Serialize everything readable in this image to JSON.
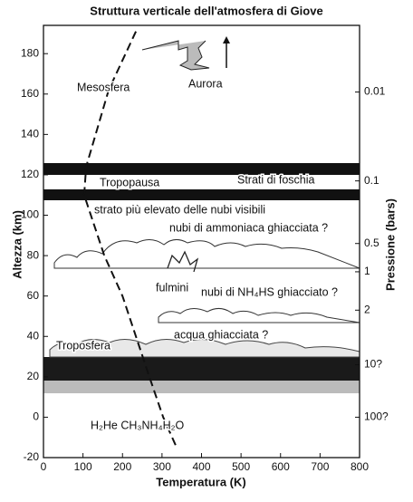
{
  "chart_data": {
    "type": "line",
    "title": "Struttura verticale dell'atmosfera di Giove",
    "x_label": "Temperatura (K)",
    "y_label": "Altezza (km)",
    "y2_label": "Pressione (bars)",
    "xlim": [
      0,
      800
    ],
    "xticks": [
      0,
      100,
      200,
      300,
      400,
      500,
      600,
      700,
      800
    ],
    "ylim": [
      -20,
      194
    ],
    "yticks": [
      -20,
      0,
      20,
      40,
      60,
      80,
      100,
      120,
      140,
      160,
      180
    ],
    "pressure_levels": [
      {
        "label": "0.01",
        "altitude": 161
      },
      {
        "label": "0.1",
        "altitude": 117
      },
      {
        "label": "0.5",
        "altitude": 86
      },
      {
        "label": "1",
        "altitude": 72
      },
      {
        "label": "2",
        "altitude": 53
      },
      {
        "label": "10?",
        "altitude": 26
      },
      {
        "label": "100?",
        "altitude": 0
      }
    ],
    "series": [
      {
        "name": "Temperatura",
        "color": "#111111",
        "x": [
          234,
          165,
          108,
          103,
          154,
          200,
          234,
          268,
          303,
          337
        ],
        "values": [
          191,
          162,
          124,
          110,
          80,
          60,
          40,
          20,
          0,
          -15
        ]
      }
    ],
    "annotations": [
      "Mesosfera",
      "Aurora",
      "Tropopausa",
      "Strati di foschia",
      "strato più elevato delle nubi visibili",
      "nubi di ammoniaca ghiacciata ?",
      "fulmini",
      "nubi di NH₄HS ghiacciato ?",
      "Troposfera",
      "acqua ghiacciata ?",
      "H₂He CH₃NH₄H₂O"
    ]
  }
}
